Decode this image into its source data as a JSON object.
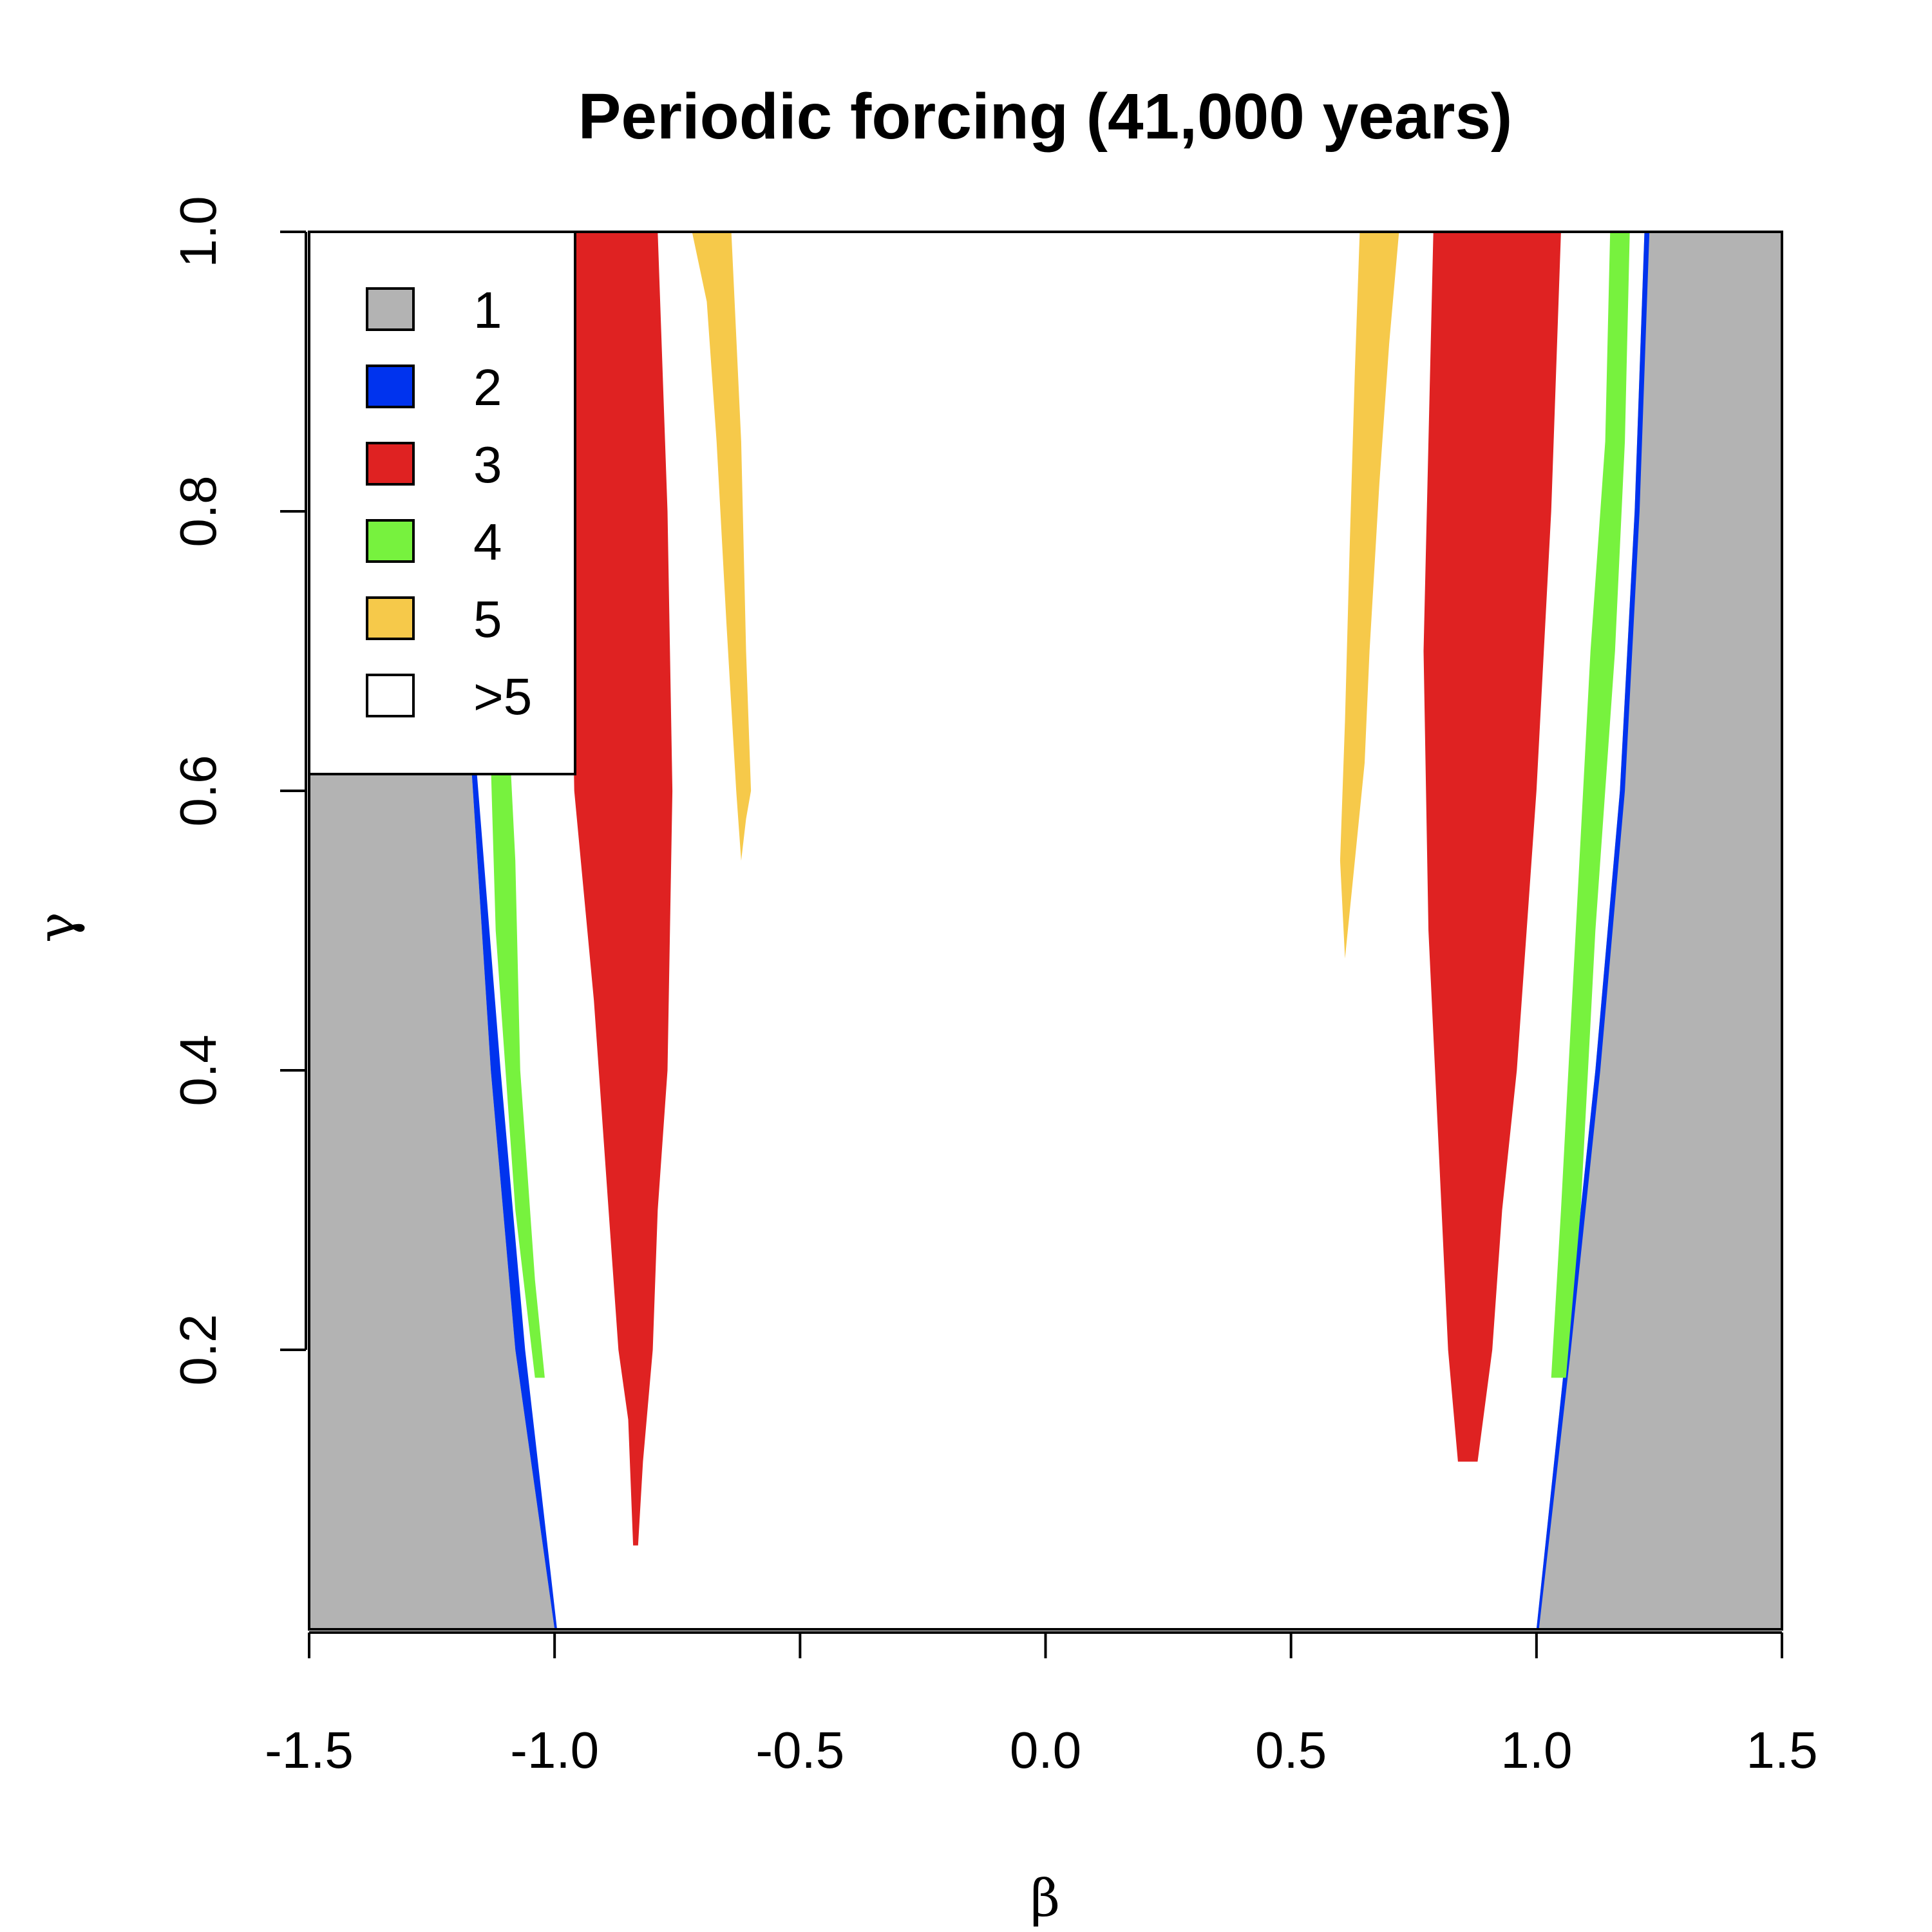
{
  "chart_data": {
    "type": "heatmap",
    "title": "Periodic forcing (41,000 years)",
    "xlabel": "β",
    "ylabel": "γ",
    "xlim": [
      -1.5,
      1.5
    ],
    "ylim": [
      0.0,
      1.0
    ],
    "x_ticks": [
      "-1.5",
      "-1.0",
      "-0.5",
      "0.0",
      "0.5",
      "1.0",
      "1.5"
    ],
    "x_tick_values": [
      -1.5,
      -1.0,
      -0.5,
      0.0,
      0.5,
      1.0,
      1.5
    ],
    "y_ticks": [
      "0.2",
      "0.4",
      "0.6",
      "0.8",
      "1.0"
    ],
    "y_tick_values": [
      0.2,
      0.4,
      0.6,
      0.8,
      1.0
    ],
    "legend": {
      "position": "top-left",
      "entries": [
        {
          "label": "1",
          "color": "#b3b3b3"
        },
        {
          "label": "2",
          "color": "#0033ee"
        },
        {
          "label": "3",
          "color": "#df2222"
        },
        {
          "label": "4",
          "color": "#77f23e"
        },
        {
          "label": "5",
          "color": "#f6c94a"
        },
        {
          "label": ">5",
          "color": "#ffffff"
        }
      ]
    },
    "background_category": ">5",
    "regions": [
      {
        "category": "1",
        "color": "#b3b3b3",
        "boundary": [
          [
            -1.5,
            0.0
          ],
          [
            -1.5,
            1.0
          ],
          [
            -1.22,
            1.0
          ],
          [
            -1.17,
            0.62
          ],
          [
            -1.13,
            0.4
          ],
          [
            -1.08,
            0.2
          ],
          [
            -1.0,
            0.0
          ]
        ]
      },
      {
        "category": "1",
        "color": "#b3b3b3",
        "boundary": [
          [
            1.0,
            0.0
          ],
          [
            1.06,
            0.2
          ],
          [
            1.12,
            0.4
          ],
          [
            1.17,
            0.6
          ],
          [
            1.2,
            0.8
          ],
          [
            1.22,
            1.0
          ],
          [
            1.5,
            1.0
          ],
          [
            1.5,
            0.0
          ]
        ]
      },
      {
        "category": "2",
        "color": "#0033ee",
        "boundary": [
          [
            -1.17,
            0.62
          ],
          [
            -1.16,
            0.62
          ],
          [
            -1.11,
            0.4
          ],
          [
            -1.06,
            0.2
          ],
          [
            -0.995,
            0.0
          ],
          [
            -1.0,
            0.0
          ],
          [
            -1.08,
            0.2
          ],
          [
            -1.13,
            0.4
          ]
        ]
      },
      {
        "category": "2",
        "color": "#0033ee",
        "boundary": [
          [
            1.0,
            0.0
          ],
          [
            1.005,
            0.0
          ],
          [
            1.07,
            0.2
          ],
          [
            1.13,
            0.4
          ],
          [
            1.18,
            0.6
          ],
          [
            1.21,
            0.8
          ],
          [
            1.23,
            1.0
          ],
          [
            1.22,
            1.0
          ],
          [
            1.2,
            0.8
          ],
          [
            1.17,
            0.6
          ],
          [
            1.12,
            0.4
          ],
          [
            1.06,
            0.2
          ]
        ]
      },
      {
        "category": "3",
        "color": "#df2222",
        "boundary": [
          [
            -0.96,
            1.0
          ],
          [
            -0.79,
            1.0
          ],
          [
            -0.77,
            0.8
          ],
          [
            -0.76,
            0.6
          ],
          [
            -0.77,
            0.4
          ],
          [
            -0.79,
            0.3
          ],
          [
            -0.8,
            0.2
          ],
          [
            -0.82,
            0.12
          ],
          [
            -0.83,
            0.06
          ],
          [
            -0.84,
            0.06
          ],
          [
            -0.85,
            0.15
          ],
          [
            -0.87,
            0.2
          ],
          [
            -0.89,
            0.3
          ],
          [
            -0.92,
            0.45
          ],
          [
            -0.96,
            0.6
          ],
          [
            -0.97,
            0.8
          ]
        ]
      },
      {
        "category": "3",
        "color": "#df2222",
        "boundary": [
          [
            0.79,
            1.0
          ],
          [
            1.05,
            1.0
          ],
          [
            1.03,
            0.8
          ],
          [
            1.0,
            0.6
          ],
          [
            0.96,
            0.4
          ],
          [
            0.93,
            0.3
          ],
          [
            0.91,
            0.2
          ],
          [
            0.88,
            0.12
          ],
          [
            0.84,
            0.12
          ],
          [
            0.82,
            0.2
          ],
          [
            0.8,
            0.35
          ],
          [
            0.78,
            0.5
          ],
          [
            0.77,
            0.7
          ],
          [
            0.78,
            0.85
          ]
        ]
      },
      {
        "category": "4",
        "color": "#77f23e",
        "boundary": [
          [
            -1.13,
            0.62
          ],
          [
            -1.09,
            0.62
          ],
          [
            -1.08,
            0.55
          ],
          [
            -1.07,
            0.4
          ],
          [
            -1.04,
            0.25
          ],
          [
            -1.02,
            0.18
          ],
          [
            -1.04,
            0.18
          ],
          [
            -1.08,
            0.3
          ],
          [
            -1.12,
            0.5
          ]
        ]
      },
      {
        "category": "4",
        "color": "#77f23e",
        "boundary": [
          [
            1.03,
            0.18
          ],
          [
            1.06,
            0.18
          ],
          [
            1.09,
            0.3
          ],
          [
            1.12,
            0.5
          ],
          [
            1.16,
            0.7
          ],
          [
            1.18,
            0.85
          ],
          [
            1.19,
            1.0
          ],
          [
            1.15,
            1.0
          ],
          [
            1.14,
            0.85
          ],
          [
            1.11,
            0.7
          ],
          [
            1.08,
            0.5
          ],
          [
            1.05,
            0.3
          ]
        ]
      },
      {
        "category": "5",
        "color": "#f6c94a",
        "boundary": [
          [
            -0.72,
            1.0
          ],
          [
            -0.64,
            1.0
          ],
          [
            -0.62,
            0.85
          ],
          [
            -0.61,
            0.7
          ],
          [
            -0.6,
            0.6
          ],
          [
            -0.61,
            0.58
          ],
          [
            -0.62,
            0.55
          ],
          [
            -0.63,
            0.6
          ],
          [
            -0.65,
            0.72
          ],
          [
            -0.67,
            0.85
          ],
          [
            -0.69,
            0.95
          ]
        ]
      },
      {
        "category": "5",
        "color": "#f6c94a",
        "boundary": [
          [
            0.64,
            1.0
          ],
          [
            0.72,
            1.0
          ],
          [
            0.7,
            0.92
          ],
          [
            0.68,
            0.82
          ],
          [
            0.66,
            0.7
          ],
          [
            0.65,
            0.62
          ],
          [
            0.63,
            0.55
          ],
          [
            0.61,
            0.48
          ],
          [
            0.6,
            0.55
          ],
          [
            0.61,
            0.65
          ],
          [
            0.62,
            0.78
          ],
          [
            0.63,
            0.9
          ]
        ]
      }
    ]
  }
}
